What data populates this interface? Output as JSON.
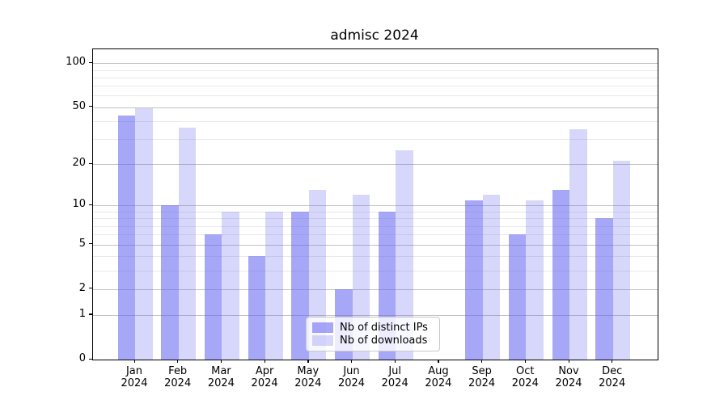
{
  "chart_data": {
    "type": "bar",
    "title": "admisc 2024",
    "year": "2024",
    "categories": [
      "Jan",
      "Feb",
      "Mar",
      "Apr",
      "May",
      "Jun",
      "Jul",
      "Aug",
      "Sep",
      "Oct",
      "Nov",
      "Dec"
    ],
    "series": [
      {
        "name": "Nb of distinct IPs",
        "color": "rgba(95,95,240,0.55)",
        "values": [
          44,
          10,
          6,
          4,
          9,
          2,
          9,
          0,
          11,
          6,
          13,
          8
        ]
      },
      {
        "name": "Nb of downloads",
        "color": "rgba(95,95,240,0.25)",
        "values": [
          49,
          36,
          9,
          9,
          13,
          12,
          25,
          0,
          12,
          11,
          35,
          21
        ]
      }
    ],
    "xlabel": "",
    "ylabel": "",
    "yscale": "log1p",
    "ylim": [
      0,
      124
    ],
    "y_major_ticks": [
      0,
      1,
      2,
      5,
      10,
      20,
      50,
      100
    ],
    "y_minor_gridlines": [
      3,
      4,
      6,
      7,
      8,
      9,
      30,
      40,
      60,
      70,
      80,
      90
    ],
    "grid": "on",
    "legend_position": "lower center"
  },
  "colors": {
    "major_grid": "#c3c3c3",
    "minor_grid": "#e9e9e9",
    "axis": "#000000",
    "background": "#ffffff"
  }
}
